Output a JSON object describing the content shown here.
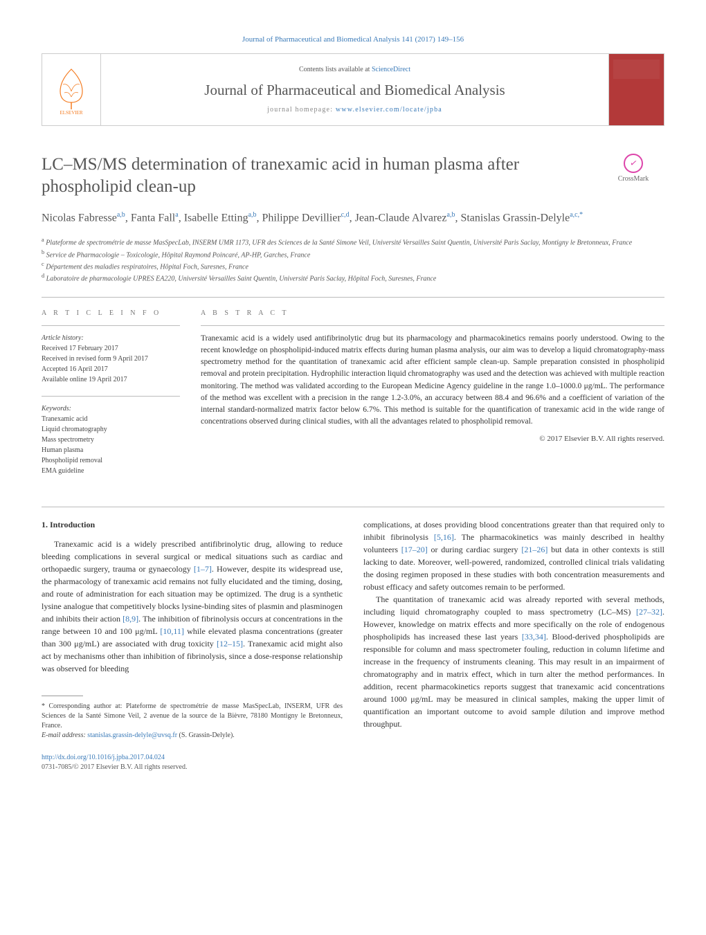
{
  "header_citation": "Journal of Pharmaceutical and Biomedical Analysis 141 (2017) 149–156",
  "contents_available": "Contents lists available at ",
  "contents_link": "ScienceDirect",
  "journal_name": "Journal of Pharmaceutical and Biomedical Analysis",
  "homepage_label": "journal homepage: ",
  "homepage_url": "www.elsevier.com/locate/jpba",
  "crossmark_label": "CrossMark",
  "title": "LC–MS/MS determination of tranexamic acid in human plasma after phospholipid clean-up",
  "authors_html": "Nicolas Fabresse<sup>a,b</sup>, Fanta Fall<sup>a</sup>, Isabelle Etting<sup>a,b</sup>, Philippe Devillier<sup>c,d</sup>, Jean-Claude Alvarez<sup>a,b</sup>, Stanislas Grassin-Delyle<sup>a,c,*</sup>",
  "affiliations": [
    "a Plateforme de spectrométrie de masse MasSpecLab, INSERM UMR 1173, UFR des Sciences de la Santé Simone Veil, Université Versailles Saint Quentin, Université Paris Saclay, Montigny le Bretonneux, France",
    "b Service de Pharmacologie – Toxicologie, Hôpital Raymond Poincaré, AP-HP, Garches, France",
    "c Département des maladies respiratoires, Hôpital Foch, Suresnes, France",
    "d Laboratoire de pharmacologie UPRES EA220, Université Versailles Saint Quentin, Université Paris Saclay, Hôpital Foch, Suresnes, France"
  ],
  "info_heading": "a r t i c l e   i n f o",
  "history_label": "Article history:",
  "history": [
    "Received 17 February 2017",
    "Received in revised form 9 April 2017",
    "Accepted 16 April 2017",
    "Available online 19 April 2017"
  ],
  "keywords_label": "Keywords:",
  "keywords": [
    "Tranexamic acid",
    "Liquid chromatography",
    "Mass spectrometry",
    "Human plasma",
    "Phospholipid removal",
    "EMA guideline"
  ],
  "abstract_heading": "a b s t r a c t",
  "abstract_text": "Tranexamic acid is a widely used antifibrinolytic drug but its pharmacology and pharmacokinetics remains poorly understood. Owing to the recent knowledge on phospholipid-induced matrix effects during human plasma analysis, our aim was to develop a liquid chromatography-mass spectrometry method for the quantitation of tranexamic acid after efficient sample clean-up. Sample preparation consisted in phospholipid removal and protein precipitation. Hydrophilic interaction liquid chromatography was used and the detection was achieved with multiple reaction monitoring. The method was validated according to the European Medicine Agency guideline in the range 1.0–1000.0 μg/mL. The performance of the method was excellent with a precision in the range 1.2-3.0%, an accuracy between 88.4 and 96.6% and a coefficient of variation of the internal standard-normalized matrix factor below 6.7%. This method is suitable for the quantification of tranexamic acid in the wide range of concentrations observed during clinical studies, with all the advantages related to phospholipid removal.",
  "copyright": "© 2017 Elsevier B.V. All rights reserved.",
  "section1_heading": "1. Introduction",
  "col1_para1_a": "Tranexamic acid is a widely prescribed antifibrinolytic drug, allowing to reduce bleeding complications in several surgical or medical situations such as cardiac and orthopaedic surgery, trauma or gynaecology ",
  "ref1": "[1–7]",
  "col1_para1_b": ". However, despite its widespread use, the pharmacology of tranexamic acid remains not fully elucidated and the timing, dosing, and route of administration for each situation may be optimized. The drug is a synthetic lysine analogue that competitively blocks lysine-binding sites of plasmin and plasminogen and inhibits their action ",
  "ref2": "[8,9]",
  "col1_para1_c": ". The inhibition of fibrinolysis occurs at concentrations in the range between 10 and 100 μg/mL ",
  "ref3": "[10,11]",
  "col1_para1_d": " while elevated plasma concentrations (greater than 300 μg/mL) are associated with drug toxicity ",
  "ref4": "[12–15]",
  "col1_para1_e": ". Tranexamic acid might also act by mechanisms other than inhibition of fibrinolysis, since a dose-response relationship was observed for bleeding",
  "col2_para1_a": "complications, at doses providing blood concentrations greater than that required only to inhibit fibrinolysis ",
  "ref5": "[5,16]",
  "col2_para1_b": ". The pharmacokinetics was mainly described in healthy volunteers ",
  "ref6": "[17–20]",
  "col2_para1_c": " or during cardiac surgery ",
  "ref7": "[21–26]",
  "col2_para1_d": " but data in other contexts is still lacking to date. Moreover, well-powered, randomized, controlled clinical trials validating the dosing regimen proposed in these studies with both concentration measurements and robust efficacy and safety outcomes remain to be performed.",
  "col2_para2_a": "The quantitation of tranexamic acid was already reported with several methods, including liquid chromatography coupled to mass spectrometry (LC–MS) ",
  "ref8": "[27–32]",
  "col2_para2_b": ". However, knowledge on matrix effects and more specifically on the role of endogenous phospholipids has increased these last years ",
  "ref9": "[33,34]",
  "col2_para2_c": ". Blood-derived phospholipids are responsible for column and mass spectrometer fouling, reduction in column lifetime and increase in the frequency of instruments cleaning. This may result in an impairment of chromatography and in matrix effect, which in turn alter the method performances. In addition, recent pharmacokinetics reports suggest that tranexamic acid concentrations around 1000 μg/mL may be measured in clinical samples, making the upper limit of quantification an important outcome to avoid sample dilution and improve method throughput.",
  "footnote_corr": "* Corresponding author at: Plateforme de spectrométrie de masse MasSpecLab, INSERM, UFR des Sciences de la Santé Simone Veil, 2 avenue de la source de la Bièvre, 78180 Montigny le Bretonneux, France.",
  "footnote_email_label": "E-mail address: ",
  "footnote_email": "stanislas.grassin-delyle@uvsq.fr",
  "footnote_email_who": " (S. Grassin-Delyle).",
  "doi": "http://dx.doi.org/10.1016/j.jpba.2017.04.024",
  "issn_line": "0731-7085/© 2017 Elsevier B.V. All rights reserved.",
  "colors": {
    "link": "#3a7ab8",
    "text": "#333333",
    "muted": "#555555",
    "rule": "#bbbbbb",
    "cover": "#b33939"
  }
}
